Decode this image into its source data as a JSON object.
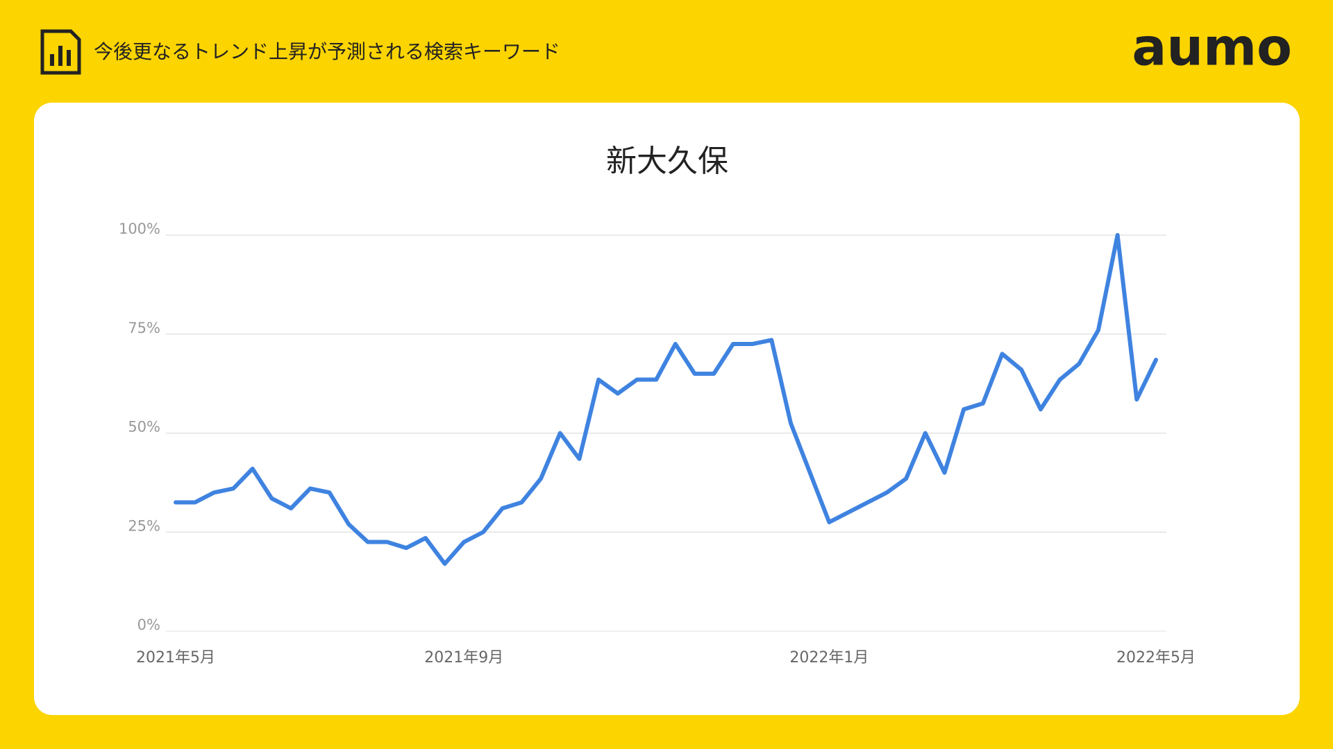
{
  "header": {
    "title": "今後更なるトレンド上昇が予測される検索キーワード",
    "logo": "aumo"
  },
  "chart_data": {
    "type": "line",
    "title": "新大久保",
    "categories": [
      "2021年5月",
      null,
      null,
      null,
      null,
      null,
      null,
      null,
      null,
      null,
      null,
      null,
      null,
      null,
      null,
      "2021年9月",
      null,
      null,
      null,
      null,
      null,
      null,
      null,
      null,
      null,
      null,
      null,
      null,
      null,
      null,
      null,
      null,
      null,
      null,
      "2022年1月",
      null,
      null,
      null,
      null,
      null,
      null,
      null,
      null,
      null,
      null,
      null,
      null,
      null,
      null,
      null,
      null,
      "2022年5月"
    ],
    "series": [
      {
        "name": "新大久保",
        "color": "#3f83e0",
        "values": [
          32.5,
          32.5,
          35,
          36,
          41,
          33.5,
          31,
          36,
          35,
          27,
          22.5,
          22.5,
          21,
          23.5,
          17,
          22.5,
          25,
          31,
          32.5,
          38.5,
          50,
          43.5,
          63.5,
          60,
          63.5,
          63.5,
          72.5,
          65,
          65,
          72.5,
          72.5,
          73.5,
          52.5,
          40,
          27.5,
          30,
          32.5,
          35,
          38.5,
          50,
          40,
          56,
          57.5,
          70,
          66,
          56,
          63.5,
          67.5,
          76,
          100,
          58.5,
          68.5
        ]
      }
    ],
    "ylim": [
      0,
      100
    ],
    "yticks": [
      {
        "value": 0,
        "label": "0%"
      },
      {
        "value": 25,
        "label": "25%"
      },
      {
        "value": 50,
        "label": "50%"
      },
      {
        "value": 75,
        "label": "75%"
      },
      {
        "value": 100,
        "label": "100%"
      }
    ],
    "grid": true
  }
}
